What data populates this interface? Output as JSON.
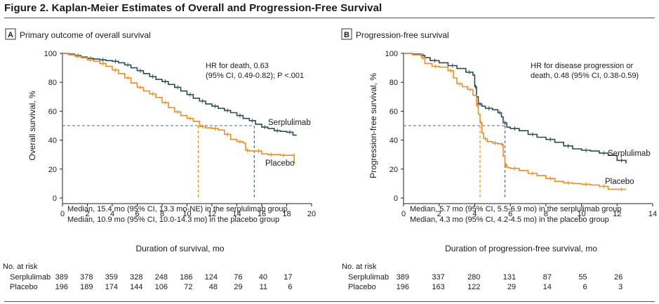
{
  "figure": {
    "title": "Figure 2. Kaplan-Meier Estimates of Overall and Progression-Free Survival"
  },
  "risk_label": "No. at risk",
  "colors": {
    "serplulimab": "#2b4a55",
    "placebo": "#f08c1e",
    "axis": "#222222",
    "ref": "#4d6f78"
  },
  "chart_data": [
    {
      "type": "line",
      "panel_letter": "A",
      "panel_title": "Primary outcome of overall survival",
      "xlabel": "Duration of survival, mo",
      "ylabel": "Overall survival, %",
      "xlim": [
        0,
        20
      ],
      "ylim": [
        0,
        100
      ],
      "xticks": [
        0,
        2,
        4,
        6,
        8,
        10,
        12,
        14,
        16,
        18,
        20
      ],
      "yticks": [
        0,
        20,
        40,
        60,
        80,
        100
      ],
      "grid": false,
      "hr_text": [
        "HR for death, 0.63",
        "(95% CI, 0.49-0.82); P <.001"
      ],
      "medians_text": [
        "Median, 15.4 mo (95% CI, 13.3 mo-NE) in the serplulimab group",
        "Median, 10.9 mo (95% CI, 10.0-14.3 mo) in the placebo group"
      ],
      "median_lines": [
        {
          "series": "Serplulimab",
          "x": 15.4,
          "y": 50
        },
        {
          "series": "Placebo",
          "x": 10.9,
          "y": 50
        }
      ],
      "series": [
        {
          "name": "Serplulimab",
          "x": [
            0,
            0.5,
            1,
            1.5,
            2,
            2.5,
            3,
            3.5,
            4,
            4.5,
            5,
            5.5,
            6,
            6.5,
            7,
            7.5,
            8,
            8.5,
            9,
            9.5,
            10,
            10.5,
            11,
            11.5,
            12,
            12.5,
            13,
            13.5,
            14,
            14.5,
            15,
            15.5,
            16,
            16.5,
            17,
            17.5,
            18,
            18.5,
            18.8
          ],
          "y": [
            100,
            99.5,
            98.5,
            97.5,
            96.5,
            96,
            95.5,
            95,
            94.5,
            93.5,
            92,
            90,
            88,
            86,
            84,
            82,
            80.5,
            78.5,
            76.5,
            74,
            71.5,
            69,
            67,
            65,
            63.5,
            62,
            60.5,
            59,
            57,
            55,
            53.5,
            51,
            49,
            48,
            46.5,
            46,
            45.5,
            43.5,
            43.5
          ]
        },
        {
          "name": "Placebo",
          "x": [
            0,
            0.5,
            1,
            1.5,
            2,
            2.5,
            3,
            3.5,
            4,
            4.5,
            5,
            5.5,
            6,
            6.5,
            7,
            7.5,
            8,
            8.5,
            9,
            9.5,
            10,
            10.5,
            11,
            11.5,
            12,
            12.5,
            13,
            13.5,
            14,
            14.5,
            14.7,
            15,
            15.5,
            16,
            16.5,
            17,
            17.5,
            18,
            18.6,
            18.6,
            18.7
          ],
          "y": [
            100,
            99,
            98,
            97,
            95.5,
            94.5,
            93,
            91,
            88.5,
            86,
            83,
            79.5,
            76.5,
            74,
            72,
            69.5,
            66,
            62.5,
            59.5,
            57,
            55,
            53,
            49.5,
            48.5,
            48,
            47,
            44,
            40.5,
            39,
            38,
            33,
            32.5,
            32.5,
            30.5,
            30,
            30,
            29.5,
            29.5,
            29.5,
            24.5,
            24.5
          ]
        }
      ],
      "risk": {
        "times": [
          0,
          2,
          4,
          6,
          8,
          10,
          12,
          14,
          16,
          18
        ],
        "rows": [
          {
            "label": "Serplulimab",
            "values": [
              389,
              378,
              359,
              328,
              248,
              186,
              124,
              76,
              40,
              17
            ]
          },
          {
            "label": "Placebo",
            "values": [
              196,
              189,
              174,
              144,
              106,
              72,
              48,
              29,
              11,
              6
            ]
          }
        ]
      }
    },
    {
      "type": "line",
      "panel_letter": "B",
      "panel_title": "Progression-free survival",
      "xlabel": "Duration of progression-free survival, mo",
      "ylabel": "Progression-free survival, %",
      "xlim": [
        0,
        14
      ],
      "ylim": [
        0,
        100
      ],
      "xticks": [
        0,
        2,
        4,
        6,
        8,
        10,
        12,
        14
      ],
      "yticks": [
        0,
        20,
        40,
        60,
        80,
        100
      ],
      "grid": false,
      "hr_text": [
        "HR for disease progression or",
        "death, 0.48 (95% CI, 0.38-0.59)"
      ],
      "medians_text": [
        "Median, 5.7 mo (95% CI, 5.5-6.9 mo) in the serplulimab group",
        "Median, 4.3 mo (95% CI, 4.2-4.5 mo) in the placebo group"
      ],
      "median_lines": [
        {
          "series": "Serplulimab",
          "x": 5.7,
          "y": 50
        },
        {
          "series": "Placebo",
          "x": 4.3,
          "y": 50
        }
      ],
      "series": [
        {
          "name": "Serplulimab",
          "x": [
            0,
            0.5,
            1,
            1.2,
            1.5,
            2,
            2.5,
            3,
            3.5,
            3.9,
            4.0,
            4.1,
            4.2,
            4.4,
            4.6,
            5.0,
            5.3,
            5.5,
            5.6,
            5.8,
            6.0,
            6.5,
            7,
            7.5,
            8,
            8.5,
            9,
            9.5,
            10,
            10.5,
            11,
            11.5,
            12,
            12.5
          ],
          "y": [
            100,
            99.5,
            98.5,
            97,
            95,
            93.5,
            91.5,
            89.5,
            87,
            85,
            77,
            70,
            65,
            63.5,
            62,
            61,
            59,
            56,
            52,
            49,
            48,
            46.5,
            44,
            42,
            40.5,
            38.5,
            36,
            34,
            33,
            32.5,
            31,
            29.5,
            26,
            24
          ]
        },
        {
          "name": "Placebo",
          "x": [
            0,
            0.5,
            1,
            1.2,
            1.6,
            2.0,
            2.5,
            2.8,
            3.0,
            3.3,
            3.6,
            3.9,
            4.1,
            4.2,
            4.3,
            4.4,
            4.5,
            4.7,
            5.0,
            5.3,
            5.5,
            5.6,
            5.7,
            5.8,
            6.0,
            6.5,
            7.0,
            7.5,
            8.0,
            8.5,
            9.0,
            9.5,
            10.0,
            10.5,
            11.0,
            11.5,
            12.0,
            12.5
          ],
          "y": [
            100,
            99,
            97,
            93,
            91,
            90.5,
            88,
            83,
            79,
            77,
            75,
            71,
            64,
            58,
            52,
            45,
            41,
            39,
            38,
            37.5,
            37,
            29,
            23,
            21,
            20.5,
            19,
            17,
            15.5,
            13.5,
            11.5,
            10.5,
            10,
            9.5,
            9,
            8,
            6,
            6,
            6
          ]
        }
      ],
      "risk": {
        "times": [
          0,
          2,
          4,
          6,
          8,
          10,
          12
        ],
        "rows": [
          {
            "label": "Serplulimab",
            "values": [
              389,
              337,
              280,
              131,
              87,
              55,
              26
            ]
          },
          {
            "label": "Placebo",
            "values": [
              196,
              163,
              122,
              29,
              14,
              6,
              3
            ]
          }
        ]
      }
    }
  ]
}
